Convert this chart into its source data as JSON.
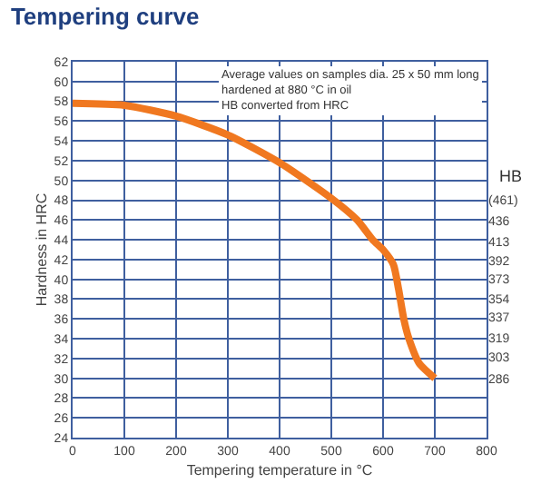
{
  "chart_data": {
    "type": "line",
    "title": "Tempering curve",
    "xlabel": "Tempering temperature in °C",
    "ylabel": "Hardness in HRC",
    "y2label": "HB",
    "x": [
      0,
      100,
      200,
      300,
      400,
      500,
      550,
      580,
      600,
      620,
      630,
      640,
      650,
      670,
      700
    ],
    "series": [
      {
        "color": "#f07820",
        "values": [
          57.8,
          57.6,
          56.5,
          54.6,
          51.8,
          48.2,
          46,
          44,
          43,
          41.5,
          39,
          36,
          34,
          31.5,
          30
        ]
      }
    ],
    "xlim": [
      0,
      800
    ],
    "xticks": [
      0,
      100,
      200,
      300,
      400,
      500,
      600,
      700,
      800
    ],
    "ylim": [
      24,
      62
    ],
    "yticks": [
      24,
      26,
      28,
      30,
      32,
      34,
      36,
      38,
      40,
      42,
      44,
      46,
      48,
      50,
      52,
      54,
      56,
      58,
      60,
      62
    ],
    "y2lim": [
      244,
      668
    ],
    "y2ticks": [
      {
        "value": 461,
        "label": "(461)"
      },
      436,
      413,
      392,
      373,
      354,
      337,
      319,
      303,
      286
    ],
    "log": "y2",
    "annotations": [
      "Average values on samples dia. 25 x 50 mm long\nhardened at 880 °C in oil\nHB converted from HRC"
    ],
    "grid": true,
    "marker": "none",
    "line_style": "solid"
  }
}
